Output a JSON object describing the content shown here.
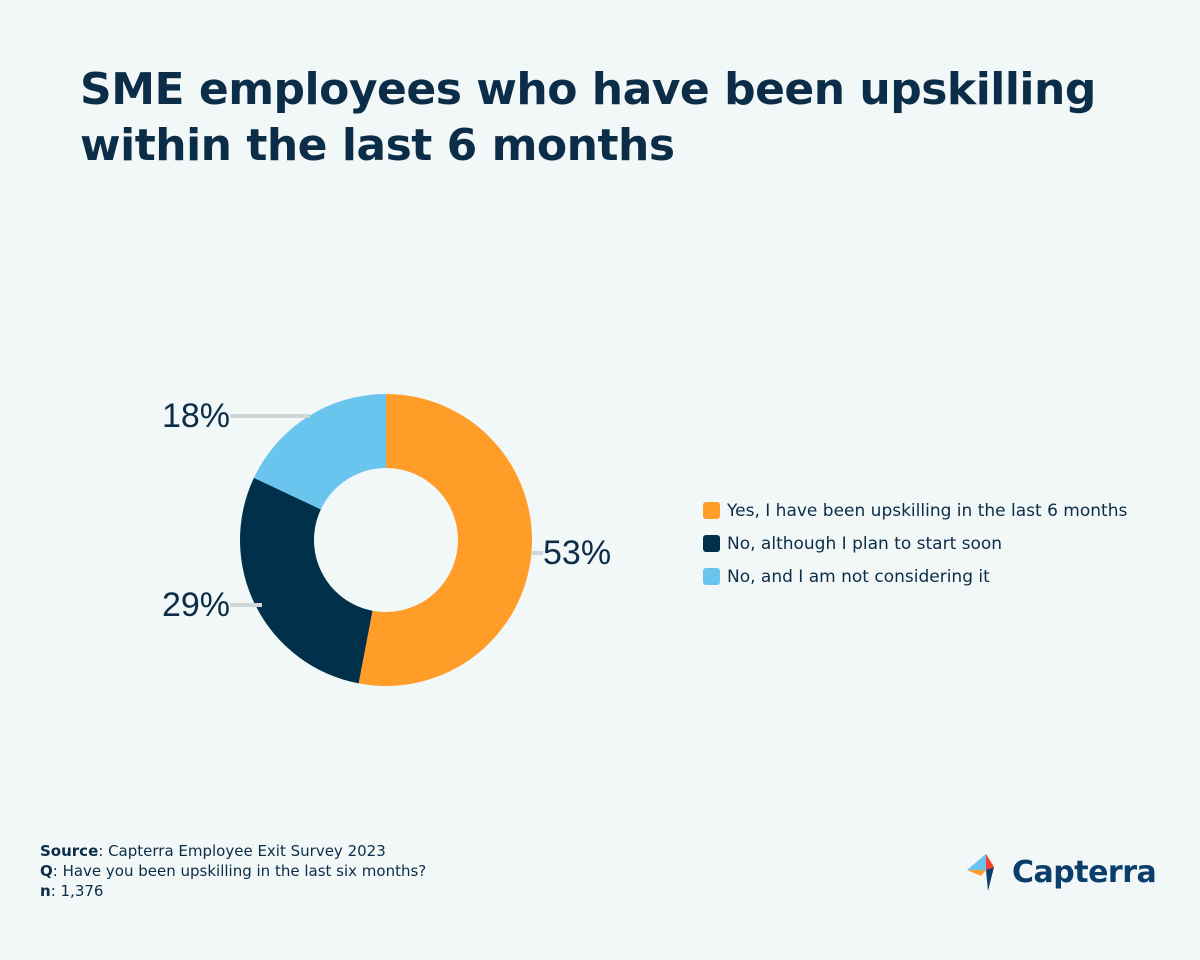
{
  "title": {
    "line1": "SME employees who have been upskilling",
    "line2": "within the last 6 months"
  },
  "chart_data": {
    "type": "pie",
    "variant": "donut",
    "title": "SME employees who have been upskilling within the last 6 months",
    "legend_position": "right",
    "series": [
      {
        "name": "Yes, I have been upskilling in the last 6 months",
        "value": 53,
        "label": "53%",
        "color": "#ff9d28"
      },
      {
        "name": "No, although I plan to start soon",
        "value": 29,
        "label": "29%",
        "color": "#00304a"
      },
      {
        "name": "No, and I am not considering it",
        "value": 18,
        "label": "18%",
        "color": "#6ac5ee"
      }
    ]
  },
  "footer": {
    "source_key": "Source",
    "source_value": ": Capterra Employee Exit Survey 2023",
    "q_key": "Q",
    "q_value": ": Have you been upskilling in the last six months?",
    "n_key": "n",
    "n_value": ": 1,376"
  },
  "logo": {
    "text": "Capterra",
    "icon": "capterra-logo-icon"
  }
}
